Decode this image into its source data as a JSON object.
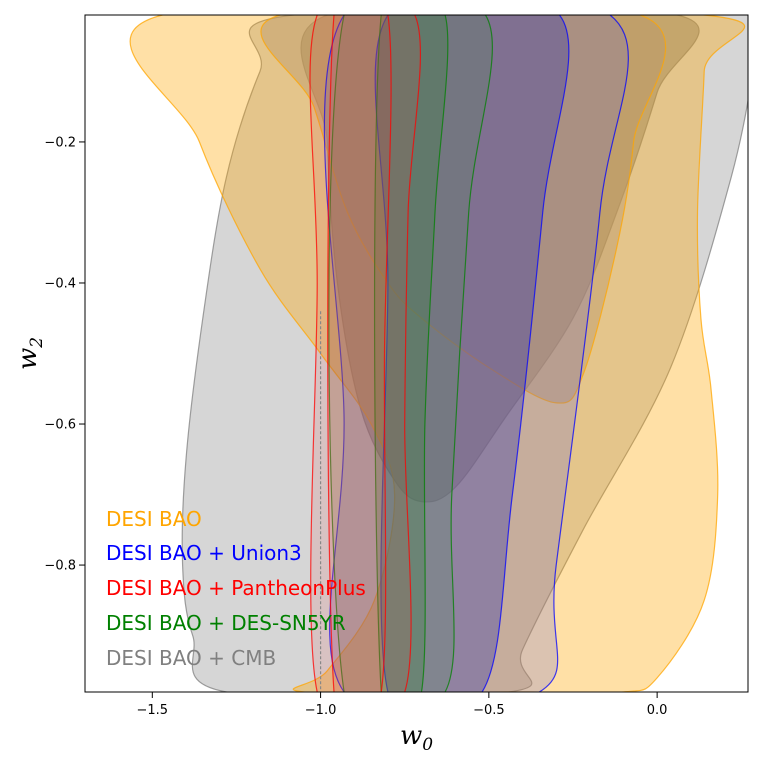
{
  "chart_data": {
    "type": "contour",
    "title": "",
    "xlabel": "w",
    "xlabel_sub": "0",
    "ylabel": "w",
    "ylabel_sub": "2",
    "xlim": [
      -1.7,
      0.27
    ],
    "ylim": [
      -0.98,
      -0.02
    ],
    "xticks": [
      -1.5,
      -1.0,
      -0.5,
      0.0
    ],
    "xtick_labels": [
      "−1.5",
      "−1.0",
      "−0.5",
      "0.0"
    ],
    "yticks": [
      -0.2,
      -0.4,
      -0.6,
      -0.8
    ],
    "ytick_labels": [
      "−0.2",
      "−0.4",
      "−0.6",
      "−0.8"
    ],
    "reference_line": {
      "x": -1.0,
      "style": "dashed",
      "color": "#888888"
    },
    "legend": {
      "position": "bottom-left",
      "entries": [
        {
          "label": "DESI BAO",
          "color": "#FFA500"
        },
        {
          "label": "DESI BAO + Union3",
          "color": "#0000FF"
        },
        {
          "label": "DESI BAO + PantheonPlus",
          "color": "#FF0000"
        },
        {
          "label": "DESI BAO + DES-SN5YR",
          "color": "#008000"
        },
        {
          "label": "DESI BAO + CMB",
          "color": "#808080"
        }
      ]
    },
    "series": [
      {
        "name": "DESI BAO + CMB",
        "color": "#808080",
        "fill_outer": "rgba(128,128,128,0.32)",
        "fill_inner": "rgba(128,128,128,0.55)",
        "outer": [
          [
            -1.08,
            -0.02
          ],
          [
            -1.18,
            -0.1
          ],
          [
            -1.28,
            -0.25
          ],
          [
            -1.35,
            -0.45
          ],
          [
            -1.4,
            -0.65
          ],
          [
            -1.41,
            -0.8
          ],
          [
            -1.38,
            -0.9
          ],
          [
            -1.28,
            -0.98
          ],
          [
            -0.44,
            -0.98
          ],
          [
            -0.4,
            -0.92
          ],
          [
            -0.22,
            -0.75
          ],
          [
            0.04,
            -0.52
          ],
          [
            0.22,
            -0.25
          ],
          [
            0.29,
            -0.08
          ],
          [
            0.29,
            -0.02
          ]
        ],
        "inner": [
          [
            -0.98,
            -0.02
          ],
          [
            -0.98,
            -0.2
          ],
          [
            -0.95,
            -0.4
          ],
          [
            -0.88,
            -0.58
          ],
          [
            -0.78,
            -0.68
          ],
          [
            -0.7,
            -0.71
          ],
          [
            -0.6,
            -0.69
          ],
          [
            -0.45,
            -0.59
          ],
          [
            -0.25,
            -0.45
          ],
          [
            -0.12,
            -0.3
          ],
          [
            0.0,
            -0.13
          ],
          [
            0.06,
            -0.02
          ]
        ]
      },
      {
        "name": "DESI BAO",
        "color": "#FFA500",
        "fill_outer": "rgba(255,165,0,0.35)",
        "fill_inner": "rgba(185,150,105,0.42)",
        "outer": [
          [
            -1.47,
            -0.02
          ],
          [
            -1.36,
            -0.2
          ],
          [
            -1.18,
            -0.38
          ],
          [
            -1.0,
            -0.5
          ],
          [
            -0.85,
            -0.6
          ],
          [
            -0.78,
            -0.7
          ],
          [
            -0.84,
            -0.85
          ],
          [
            -0.98,
            -0.95
          ],
          [
            -1.05,
            -0.98
          ],
          [
            -0.45,
            -0.98
          ],
          [
            -0.38,
            -0.98
          ],
          [
            -0.1,
            -0.98
          ],
          [
            0.0,
            -0.96
          ],
          [
            0.14,
            -0.85
          ],
          [
            0.18,
            -0.7
          ],
          [
            0.16,
            -0.55
          ],
          [
            0.13,
            -0.45
          ],
          [
            0.12,
            -0.3
          ],
          [
            0.14,
            -0.1
          ],
          [
            0.14,
            -0.02
          ]
        ],
        "inner": [
          [
            -1.12,
            -0.02
          ],
          [
            -1.02,
            -0.15
          ],
          [
            -0.92,
            -0.3
          ],
          [
            -0.8,
            -0.4
          ],
          [
            -0.7,
            -0.45
          ],
          [
            -0.5,
            -0.52
          ],
          [
            -0.3,
            -0.57
          ],
          [
            -0.22,
            -0.53
          ],
          [
            -0.12,
            -0.35
          ],
          [
            -0.07,
            -0.2
          ],
          [
            -0.05,
            -0.02
          ]
        ]
      },
      {
        "name": "DESI BAO + Union3",
        "color": "#0000FF",
        "fill_outer": "rgba(90,90,220,0.22)",
        "fill_inner": "rgba(60,60,170,0.38)",
        "outer": [
          [
            -0.93,
            -0.02
          ],
          [
            -0.93,
            -0.6
          ],
          [
            -0.93,
            -0.98
          ],
          [
            -0.35,
            -0.98
          ],
          [
            -0.3,
            -0.8
          ],
          [
            -0.17,
            -0.3
          ],
          [
            -0.14,
            -0.02
          ]
        ],
        "inner": [
          [
            -0.8,
            -0.02
          ],
          [
            -0.8,
            -0.4
          ],
          [
            -0.8,
            -0.98
          ],
          [
            -0.52,
            -0.98
          ],
          [
            -0.43,
            -0.7
          ],
          [
            -0.34,
            -0.3
          ],
          [
            -0.29,
            -0.02
          ]
        ]
      },
      {
        "name": "DESI BAO + DES-SN5YR",
        "color": "#008000",
        "fill_outer": "rgba(60,150,60,0.18)",
        "fill_inner": "rgba(50,130,50,0.28)",
        "outer": [
          [
            -0.93,
            -0.02
          ],
          [
            -0.93,
            -0.98
          ],
          [
            -0.63,
            -0.98
          ],
          [
            -0.61,
            -0.7
          ],
          [
            -0.56,
            -0.3
          ],
          [
            -0.51,
            -0.02
          ]
        ],
        "inner": [
          [
            -0.82,
            -0.02
          ],
          [
            -0.82,
            -0.98
          ],
          [
            -0.7,
            -0.98
          ],
          [
            -0.69,
            -0.6
          ],
          [
            -0.66,
            -0.3
          ],
          [
            -0.63,
            -0.02
          ]
        ]
      },
      {
        "name": "DESI BAO + PantheonPlus",
        "color": "#FF0000",
        "fill_outer": "rgba(230,80,80,0.15)",
        "fill_inner": "rgba(210,70,70,0.20)",
        "outer": [
          [
            -1.01,
            -0.02
          ],
          [
            -1.01,
            -0.4
          ],
          [
            -1.01,
            -0.98
          ],
          [
            -0.75,
            -0.98
          ],
          [
            -0.75,
            -0.6
          ],
          [
            -0.74,
            -0.3
          ],
          [
            -0.72,
            -0.02
          ]
        ],
        "inner": [
          [
            -0.96,
            -0.02
          ],
          [
            -0.96,
            -0.98
          ],
          [
            -0.82,
            -0.98
          ],
          [
            -0.81,
            -0.5
          ],
          [
            -0.8,
            -0.02
          ]
        ]
      }
    ]
  }
}
